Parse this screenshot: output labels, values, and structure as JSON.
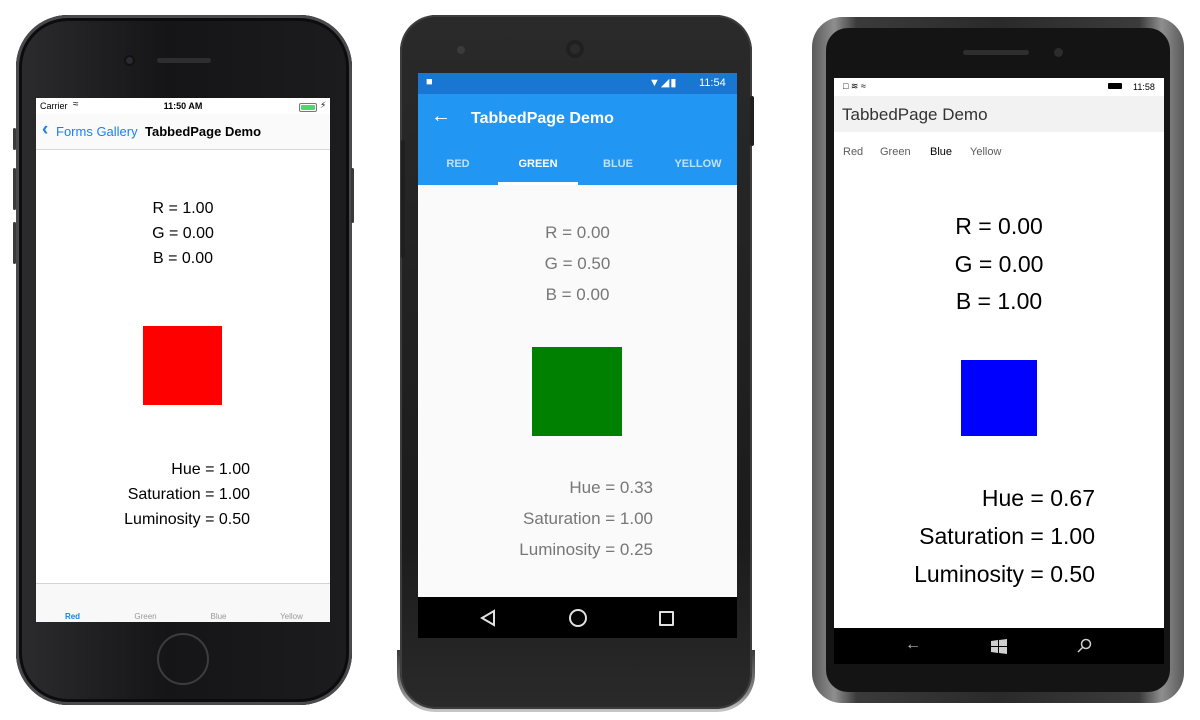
{
  "ios": {
    "status": {
      "carrier": "Carrier",
      "time": "11:50 AM"
    },
    "nav": {
      "back_label": "Forms Gallery",
      "title": "TabbedPage Demo"
    },
    "rgb": [
      "R = 1.00",
      "G = 0.00",
      "B = 0.00"
    ],
    "hsl": [
      "Hue = 1.00",
      "Saturation = 1.00",
      "Luminosity = 0.50"
    ],
    "tabs": [
      "Red",
      "Green",
      "Blue",
      "Yellow"
    ],
    "active_tab": "Red",
    "swatch_color": "#ff0000"
  },
  "android": {
    "status": {
      "time": "11:54"
    },
    "toolbar": {
      "title": "TabbedPage Demo"
    },
    "tabs": [
      "RED",
      "GREEN",
      "BLUE",
      "YELLOW"
    ],
    "active_tab": "GREEN",
    "rgb": [
      "R = 0.00",
      "G = 0.50",
      "B = 0.00"
    ],
    "hsl": [
      "Hue = 0.33",
      "Saturation = 1.00",
      "Luminosity = 0.25"
    ],
    "swatch_color": "#008000",
    "accent_color": "#2196f3"
  },
  "windows": {
    "status": {
      "time": "11:58"
    },
    "title": "TabbedPage Demo",
    "tabs": [
      "Red",
      "Green",
      "Blue",
      "Yellow"
    ],
    "active_tab": "Blue",
    "rgb": [
      "R = 0.00",
      "G = 0.00",
      "B = 1.00"
    ],
    "hsl": [
      "Hue = 0.67",
      "Saturation = 1.00",
      "Luminosity = 0.50"
    ],
    "swatch_color": "#0000ff"
  }
}
